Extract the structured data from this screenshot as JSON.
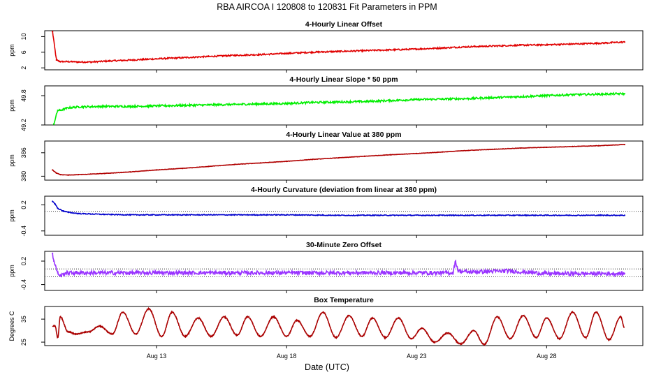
{
  "figure": {
    "title": "RBA   AIRCOA I   120808 to 120831   Fit Parameters in PPM",
    "xlabel": "Date (UTC)"
  },
  "chart_data": [
    {
      "type": "line",
      "title": "4-Hourly Linear Offset",
      "ylabel": "ppm",
      "color": "#e00000",
      "xlim": [
        8.7,
        31.7
      ],
      "ylim": [
        1.5,
        11.5
      ],
      "yticks": [
        "2",
        "6",
        "10"
      ],
      "ytick_values": [
        2,
        6,
        10
      ],
      "xticks": [],
      "x": [
        9.0,
        9.15,
        9.3,
        9.6,
        10.0,
        10.5,
        11.0,
        12.0,
        13.0,
        14.0,
        15.0,
        16.0,
        17.0,
        18.0,
        19.0,
        20.0,
        21.0,
        22.0,
        23.0,
        24.0,
        25.0,
        26.0,
        27.0,
        28.0,
        29.0,
        30.0,
        31.0
      ],
      "values": [
        11.3,
        4.0,
        3.6,
        3.6,
        3.5,
        3.5,
        3.7,
        4.0,
        4.3,
        4.6,
        4.9,
        5.2,
        5.4,
        5.7,
        6.0,
        6.2,
        6.4,
        6.6,
        6.8,
        7.1,
        7.4,
        7.6,
        7.8,
        7.9,
        8.1,
        8.3,
        8.6
      ],
      "noise": 0.18
    },
    {
      "type": "line",
      "title": "4-Hourly Linear Slope * 50 ppm",
      "ylabel": "ppm",
      "color": "#00ee00",
      "xlim": [
        8.7,
        31.7
      ],
      "ylim": [
        49.2,
        50.0
      ],
      "yticks": [
        "49.2",
        "49.8"
      ],
      "ytick_values": [
        49.2,
        49.8
      ],
      "xticks": [],
      "x": [
        9.05,
        9.2,
        9.3,
        9.6,
        10.0,
        11.0,
        12.0,
        13.0,
        14.0,
        15.0,
        16.0,
        17.0,
        18.0,
        19.0,
        20.0,
        21.0,
        22.0,
        23.0,
        24.0,
        25.0,
        26.0,
        27.0,
        28.0,
        29.0,
        30.0,
        31.0
      ],
      "values": [
        49.22,
        49.5,
        49.5,
        49.55,
        49.57,
        49.58,
        49.58,
        49.59,
        49.6,
        49.61,
        49.62,
        49.63,
        49.64,
        49.66,
        49.67,
        49.68,
        49.7,
        49.72,
        49.73,
        49.74,
        49.76,
        49.78,
        49.8,
        49.82,
        49.83,
        49.84
      ],
      "noise": 0.02
    },
    {
      "type": "line",
      "title": "4-Hourly Linear Value at 380 ppm",
      "ylabel": "ppm",
      "color": "#b00000",
      "xlim": [
        8.7,
        31.7
      ],
      "ylim": [
        379,
        389
      ],
      "yticks": [
        "380",
        "386"
      ],
      "ytick_values": [
        380,
        386
      ],
      "xticks": [],
      "x": [
        9.0,
        9.15,
        9.3,
        9.6,
        10.0,
        11.0,
        12.0,
        13.0,
        14.0,
        15.0,
        16.0,
        17.0,
        18.0,
        19.0,
        20.0,
        21.0,
        22.0,
        23.0,
        24.0,
        25.0,
        26.0,
        27.0,
        28.0,
        29.0,
        30.0,
        31.0
      ],
      "values": [
        381.6,
        380.8,
        380.4,
        380.3,
        380.4,
        380.7,
        381.1,
        381.6,
        382.0,
        382.5,
        383.0,
        383.4,
        383.8,
        384.3,
        384.7,
        385.1,
        385.5,
        385.8,
        386.2,
        386.6,
        386.9,
        387.2,
        387.4,
        387.6,
        387.8,
        388.1
      ],
      "noise": 0.05
    },
    {
      "type": "line",
      "title": "4-Hourly Curvature (deviation from linear at 380 ppm)",
      "ylabel": "ppm",
      "color": "#0000cc",
      "xlim": [
        8.7,
        31.7
      ],
      "ylim": [
        -0.5,
        0.4
      ],
      "yticks": [
        "-0.4",
        "0.2"
      ],
      "ytick_values": [
        -0.4,
        0.2
      ],
      "xticks": [],
      "reference_lines": [
        {
          "y": 0.05,
          "style": "dotted"
        }
      ],
      "x": [
        9.0,
        9.1,
        9.2,
        9.4,
        9.6,
        10.0,
        11.0,
        12.0,
        14.0,
        16.0,
        18.0,
        20.0,
        22.0,
        24.0,
        26.0,
        28.0,
        30.0,
        31.0
      ],
      "values": [
        0.28,
        0.22,
        0.12,
        0.06,
        0.03,
        0.0,
        -0.02,
        -0.03,
        -0.03,
        -0.03,
        -0.03,
        -0.04,
        -0.04,
        -0.04,
        -0.04,
        -0.04,
        -0.04,
        -0.04
      ],
      "noise": 0.01
    },
    {
      "type": "line",
      "title": "30-Minute Zero Offset",
      "ylabel": "ppm",
      "color": "#9933ff",
      "xlim": [
        8.7,
        31.7
      ],
      "ylim": [
        -0.55,
        0.45
      ],
      "yticks": [
        "-0.4",
        "0.2"
      ],
      "ytick_values": [
        -0.4,
        0.2
      ],
      "xticks": [],
      "reference_lines": [
        {
          "y": 0.0,
          "style": "dotted"
        },
        {
          "y": -0.2,
          "style": "dotted"
        }
      ],
      "x": [
        9.0,
        9.05,
        9.1,
        9.2,
        9.3,
        9.5,
        10.0,
        12.0,
        14.0,
        16.0,
        18.0,
        20.0,
        22.0,
        24.0,
        24.4,
        24.5,
        24.6,
        25.0,
        26.5,
        28.0,
        30.0,
        31.0
      ],
      "values": [
        0.4,
        0.2,
        0.1,
        -0.1,
        -0.18,
        -0.1,
        -0.1,
        -0.1,
        -0.1,
        -0.1,
        -0.1,
        -0.1,
        -0.1,
        -0.1,
        -0.1,
        0.2,
        -0.05,
        -0.08,
        -0.05,
        -0.12,
        -0.12,
        -0.12
      ],
      "noise": 0.05
    },
    {
      "type": "line",
      "title": "Box Temperature",
      "ylabel": "Degrees C",
      "color": "#aa0000",
      "xlim": [
        8.7,
        31.7
      ],
      "ylim": [
        23.5,
        40.5
      ],
      "yticks": [
        "25",
        "35"
      ],
      "ytick_values": [
        25,
        35
      ],
      "xticks": [
        "Aug 13",
        "Aug 18",
        "Aug 23",
        "Aug 28"
      ],
      "xtick_values": [
        13,
        18,
        23,
        28
      ],
      "daily_cycle": {
        "start_x": 9.0,
        "end_x": 31.0,
        "peak_days": [
          9.1,
          9.3,
          9.9,
          10.8,
          11.7,
          12.7,
          13.6,
          14.6,
          15.6,
          16.5,
          17.5,
          18.4,
          19.4,
          20.4,
          21.3,
          22.3,
          23.2,
          24.2,
          25.2,
          26.1,
          27.1,
          28.0,
          29.0,
          29.9,
          30.85
        ],
        "peak_values": [
          32,
          36,
          28.5,
          32,
          38,
          39.5,
          38,
          35.5,
          36,
          36,
          36,
          34.5,
          38,
          36.5,
          35.5,
          35.5,
          31,
          29,
          30,
          36,
          36.5,
          35.5,
          38,
          38,
          36
        ],
        "trough_days": [
          9.2,
          9.6,
          10.4,
          11.3,
          12.2,
          13.2,
          14.1,
          15.1,
          16.1,
          17.0,
          18.0,
          18.9,
          19.9,
          20.9,
          21.8,
          22.8,
          23.7,
          24.7,
          25.6,
          26.6,
          27.6,
          28.5,
          29.5,
          30.4,
          31.0
        ],
        "trough_values": [
          27,
          29.5,
          29.5,
          28.5,
          28.5,
          27.5,
          27.5,
          27.5,
          28,
          27.5,
          27.5,
          27.5,
          27,
          27.5,
          27,
          26.5,
          25,
          24.2,
          24,
          26.5,
          27,
          26.5,
          27,
          26,
          31
        ]
      }
    }
  ]
}
